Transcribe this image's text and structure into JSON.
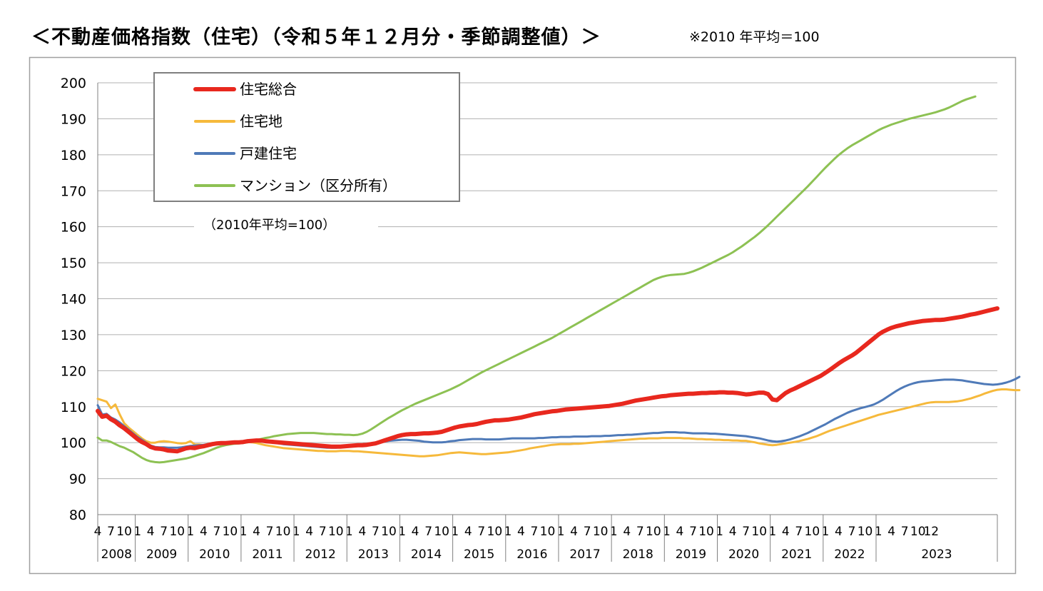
{
  "title": "＜不動産価格指数（住宅）（令和５年１２月分・季節調整値）＞",
  "note": "※2010 年平均＝100",
  "chart_data": {
    "type": "line",
    "ylim": [
      80,
      200
    ],
    "yticks": [
      80,
      90,
      100,
      110,
      120,
      130,
      140,
      150,
      160,
      170,
      180,
      190,
      200
    ],
    "annotation": "（2010年平均=100）",
    "legend_position": "top-left",
    "grid": true,
    "x_start": "2008-04",
    "x_end": "2023-12",
    "month_ticks": [
      "4",
      "7",
      "10",
      "1",
      "4",
      "7",
      "10",
      "1",
      "4",
      "7",
      "10",
      "1",
      "4",
      "7",
      "10",
      "1",
      "4",
      "7",
      "10",
      "1",
      "4",
      "7",
      "10",
      "1",
      "4",
      "7",
      "10",
      "1",
      "4",
      "7",
      "10",
      "1",
      "4",
      "7",
      "10",
      "1",
      "4",
      "7",
      "10",
      "1",
      "4",
      "7",
      "10",
      "1",
      "4",
      "7",
      "10",
      "1",
      "4",
      "7",
      "10",
      "1",
      "4",
      "7",
      "10",
      "1",
      "4",
      "7",
      "10",
      "1",
      "4",
      "7",
      "10",
      "12"
    ],
    "years": [
      "2008",
      "2009",
      "2010",
      "2011",
      "2012",
      "2013",
      "2014",
      "2015",
      "2016",
      "2017",
      "2018",
      "2019",
      "2020",
      "2021",
      "2022",
      "2023"
    ],
    "series": [
      {
        "name": "住宅総合",
        "color": "#e8281e",
        "values": [
          108.8,
          107.2,
          107.5,
          106.5,
          105.8,
          104.8,
          104.0,
          103.0,
          102.0,
          101.0,
          100.2,
          99.6,
          98.8,
          98.4,
          98.3,
          98.1,
          97.8,
          97.7,
          97.6,
          98.0,
          98.4,
          98.6,
          98.5,
          98.8,
          99.0,
          99.3,
          99.6,
          99.8,
          99.9,
          99.9,
          100.0,
          100.1,
          100.1,
          100.2,
          100.4,
          100.5,
          100.6,
          100.6,
          100.4,
          100.3,
          100.2,
          100.1,
          100.0,
          99.9,
          99.8,
          99.7,
          99.6,
          99.5,
          99.4,
          99.3,
          99.2,
          99.1,
          99.0,
          98.9,
          98.9,
          98.9,
          99.0,
          99.1,
          99.2,
          99.3,
          99.3,
          99.4,
          99.6,
          99.8,
          100.2,
          100.6,
          101.0,
          101.4,
          101.8,
          102.1,
          102.3,
          102.4,
          102.4,
          102.5,
          102.6,
          102.6,
          102.7,
          102.8,
          103.0,
          103.4,
          103.8,
          104.2,
          104.5,
          104.7,
          104.9,
          105.0,
          105.2,
          105.5,
          105.8,
          106.0,
          106.2,
          106.2,
          106.3,
          106.4,
          106.6,
          106.8,
          107.0,
          107.3,
          107.6,
          107.9,
          108.1,
          108.3,
          108.5,
          108.7,
          108.8,
          109.0,
          109.2,
          109.3,
          109.4,
          109.5,
          109.6,
          109.7,
          109.8,
          109.9,
          110.0,
          110.1,
          110.2,
          110.4,
          110.6,
          110.8,
          111.1,
          111.4,
          111.7,
          111.9,
          112.1,
          112.3,
          112.5,
          112.7,
          112.9,
          113.0,
          113.2,
          113.3,
          113.4,
          113.5,
          113.6,
          113.6,
          113.7,
          113.8,
          113.8,
          113.9,
          113.9,
          114.0,
          114.0,
          113.9,
          113.9,
          113.8,
          113.6,
          113.4,
          113.5,
          113.7,
          113.9,
          113.9,
          113.5,
          112.0,
          111.8,
          112.8,
          113.8,
          114.5,
          115.0,
          115.6,
          116.2,
          116.8,
          117.4,
          118.0,
          118.6,
          119.4,
          120.2,
          121.1,
          122.0,
          122.8,
          123.5,
          124.2,
          125.0,
          126.0,
          127.0,
          128.0,
          129.0,
          130.0,
          130.8,
          131.4,
          131.9,
          132.3,
          132.6,
          132.9,
          133.2,
          133.4,
          133.6,
          133.8,
          133.9,
          134.0,
          134.1,
          134.1,
          134.2,
          134.4,
          134.6,
          134.8,
          135.0,
          135.3,
          135.6,
          135.8,
          136.1,
          136.4,
          136.7,
          137.0,
          137.3
        ]
      },
      {
        "name": "住宅地",
        "color": "#f6b93b",
        "values": [
          112.2,
          111.8,
          111.4,
          109.6,
          110.6,
          107.8,
          105.4,
          104.2,
          103.2,
          102.2,
          101.2,
          100.4,
          100.0,
          100.0,
          100.3,
          100.4,
          100.3,
          100.1,
          99.9,
          99.8,
          99.9,
          100.4,
          99.5,
          99.5,
          99.3,
          99.6,
          99.9,
          100.0,
          99.9,
          99.7,
          99.8,
          100.0,
          100.2,
          100.3,
          100.2,
          100.1,
          99.9,
          99.6,
          99.3,
          99.1,
          98.9,
          98.7,
          98.5,
          98.4,
          98.3,
          98.2,
          98.1,
          98.0,
          97.9,
          97.8,
          97.7,
          97.7,
          97.6,
          97.6,
          97.6,
          97.7,
          97.7,
          97.7,
          97.6,
          97.6,
          97.5,
          97.4,
          97.3,
          97.2,
          97.1,
          97.0,
          96.9,
          96.8,
          96.7,
          96.6,
          96.5,
          96.4,
          96.3,
          96.2,
          96.2,
          96.3,
          96.4,
          96.5,
          96.7,
          96.9,
          97.1,
          97.2,
          97.3,
          97.2,
          97.1,
          97.0,
          96.9,
          96.8,
          96.8,
          96.9,
          97.0,
          97.1,
          97.2,
          97.3,
          97.5,
          97.7,
          97.9,
          98.1,
          98.4,
          98.6,
          98.8,
          99.0,
          99.2,
          99.4,
          99.5,
          99.6,
          99.6,
          99.6,
          99.7,
          99.7,
          99.8,
          99.9,
          100.0,
          100.1,
          100.2,
          100.3,
          100.4,
          100.5,
          100.6,
          100.7,
          100.8,
          100.9,
          101.0,
          101.1,
          101.1,
          101.2,
          101.2,
          101.2,
          101.3,
          101.3,
          101.3,
          101.3,
          101.3,
          101.2,
          101.2,
          101.1,
          101.0,
          101.0,
          100.9,
          100.9,
          100.8,
          100.8,
          100.7,
          100.7,
          100.6,
          100.6,
          100.5,
          100.5,
          100.3,
          100.1,
          99.8,
          99.6,
          99.4,
          99.3,
          99.4,
          99.6,
          99.8,
          100.0,
          100.2,
          100.4,
          100.7,
          101.0,
          101.4,
          101.8,
          102.3,
          102.8,
          103.3,
          103.7,
          104.1,
          104.5,
          104.9,
          105.3,
          105.7,
          106.1,
          106.5,
          106.9,
          107.3,
          107.7,
          108.0,
          108.3,
          108.6,
          108.9,
          109.2,
          109.5,
          109.8,
          110.1,
          110.4,
          110.7,
          111.0,
          111.2,
          111.3,
          111.3,
          111.3,
          111.3,
          111.4,
          111.5,
          111.7,
          112.0,
          112.3,
          112.7,
          113.1,
          113.6,
          114.0,
          114.4,
          114.7,
          114.8,
          114.8,
          114.7,
          114.6,
          114.6
        ]
      },
      {
        "name": "戸建住宅",
        "color": "#4f7ab8",
        "values": [
          110.4,
          107.8,
          108.0,
          107.0,
          106.4,
          105.6,
          104.6,
          103.6,
          102.6,
          101.6,
          100.8,
          100.0,
          99.2,
          98.8,
          98.7,
          98.7,
          98.6,
          98.6,
          98.6,
          98.7,
          98.9,
          99.1,
          99.2,
          99.3,
          99.4,
          99.6,
          99.8,
          99.9,
          100.0,
          100.0,
          100.1,
          100.2,
          100.3,
          100.4,
          100.5,
          100.6,
          100.6,
          100.5,
          100.4,
          100.2,
          100.0,
          99.8,
          99.6,
          99.5,
          99.4,
          99.3,
          99.2,
          99.1,
          99.0,
          98.9,
          98.8,
          98.7,
          98.6,
          98.6,
          98.6,
          98.7,
          98.8,
          98.9,
          99.1,
          99.3,
          99.5,
          99.6,
          99.8,
          99.9,
          100.1,
          100.3,
          100.5,
          100.6,
          100.7,
          100.8,
          100.8,
          100.7,
          100.6,
          100.5,
          100.3,
          100.2,
          100.1,
          100.1,
          100.1,
          100.2,
          100.4,
          100.5,
          100.7,
          100.8,
          100.9,
          101.0,
          101.0,
          101.0,
          100.9,
          100.9,
          100.9,
          100.9,
          101.0,
          101.1,
          101.2,
          101.2,
          101.2,
          101.2,
          101.2,
          101.2,
          101.3,
          101.3,
          101.4,
          101.5,
          101.5,
          101.6,
          101.6,
          101.6,
          101.7,
          101.7,
          101.7,
          101.7,
          101.8,
          101.8,
          101.8,
          101.9,
          101.9,
          102.0,
          102.1,
          102.1,
          102.2,
          102.2,
          102.3,
          102.4,
          102.5,
          102.6,
          102.7,
          102.7,
          102.8,
          102.9,
          102.9,
          102.9,
          102.8,
          102.8,
          102.7,
          102.6,
          102.6,
          102.6,
          102.6,
          102.5,
          102.5,
          102.4,
          102.3,
          102.2,
          102.1,
          102.0,
          101.9,
          101.8,
          101.6,
          101.4,
          101.2,
          100.9,
          100.6,
          100.4,
          100.3,
          100.4,
          100.6,
          100.9,
          101.3,
          101.7,
          102.2,
          102.7,
          103.3,
          103.9,
          104.5,
          105.1,
          105.8,
          106.5,
          107.1,
          107.7,
          108.3,
          108.8,
          109.2,
          109.6,
          109.9,
          110.2,
          110.6,
          111.2,
          111.9,
          112.7,
          113.5,
          114.3,
          115.0,
          115.6,
          116.1,
          116.5,
          116.8,
          117.0,
          117.1,
          117.2,
          117.3,
          117.4,
          117.5,
          117.5,
          117.5,
          117.4,
          117.3,
          117.1,
          116.9,
          116.7,
          116.5,
          116.3,
          116.2,
          116.1,
          116.2,
          116.4,
          116.7,
          117.1,
          117.6,
          118.3
        ]
      },
      {
        "name": "マンション（区分所有）",
        "color": "#8dc153",
        "values": [
          101.4,
          100.6,
          100.6,
          100.2,
          99.6,
          99.0,
          98.6,
          98.0,
          97.4,
          96.6,
          95.8,
          95.2,
          94.8,
          94.6,
          94.5,
          94.6,
          94.8,
          95.0,
          95.2,
          95.4,
          95.6,
          95.9,
          96.3,
          96.7,
          97.1,
          97.6,
          98.1,
          98.6,
          99.0,
          99.3,
          99.5,
          99.7,
          99.8,
          99.9,
          100.1,
          100.4,
          100.7,
          101.0,
          101.3,
          101.5,
          101.8,
          102.0,
          102.2,
          102.4,
          102.5,
          102.6,
          102.7,
          102.7,
          102.7,
          102.7,
          102.6,
          102.5,
          102.4,
          102.4,
          102.3,
          102.3,
          102.2,
          102.2,
          102.1,
          102.2,
          102.5,
          103.0,
          103.7,
          104.5,
          105.3,
          106.1,
          106.9,
          107.6,
          108.3,
          109.0,
          109.6,
          110.2,
          110.8,
          111.3,
          111.8,
          112.3,
          112.8,
          113.3,
          113.8,
          114.3,
          114.8,
          115.4,
          116.0,
          116.7,
          117.4,
          118.1,
          118.8,
          119.5,
          120.1,
          120.7,
          121.3,
          121.9,
          122.5,
          123.1,
          123.7,
          124.3,
          124.9,
          125.5,
          126.1,
          126.7,
          127.3,
          127.9,
          128.5,
          129.1,
          129.8,
          130.5,
          131.2,
          131.9,
          132.6,
          133.3,
          134.0,
          134.7,
          135.4,
          136.1,
          136.8,
          137.5,
          138.2,
          138.9,
          139.6,
          140.3,
          141.0,
          141.7,
          142.4,
          143.1,
          143.8,
          144.5,
          145.2,
          145.7,
          146.1,
          146.4,
          146.6,
          146.7,
          146.8,
          146.9,
          147.2,
          147.6,
          148.1,
          148.6,
          149.2,
          149.8,
          150.4,
          151.0,
          151.6,
          152.2,
          152.9,
          153.7,
          154.5,
          155.4,
          156.3,
          157.2,
          158.2,
          159.3,
          160.4,
          161.6,
          162.8,
          164.0,
          165.2,
          166.4,
          167.6,
          168.8,
          170.0,
          171.2,
          172.5,
          173.8,
          175.1,
          176.4,
          177.6,
          178.8,
          179.9,
          180.9,
          181.8,
          182.6,
          183.3,
          184.0,
          184.7,
          185.4,
          186.1,
          186.8,
          187.4,
          187.9,
          188.4,
          188.8,
          189.2,
          189.6,
          190.0,
          190.3,
          190.6,
          190.9,
          191.2,
          191.5,
          191.8,
          192.2,
          192.6,
          193.1,
          193.7,
          194.3,
          194.9,
          195.4,
          195.8,
          196.2
        ]
      }
    ]
  }
}
